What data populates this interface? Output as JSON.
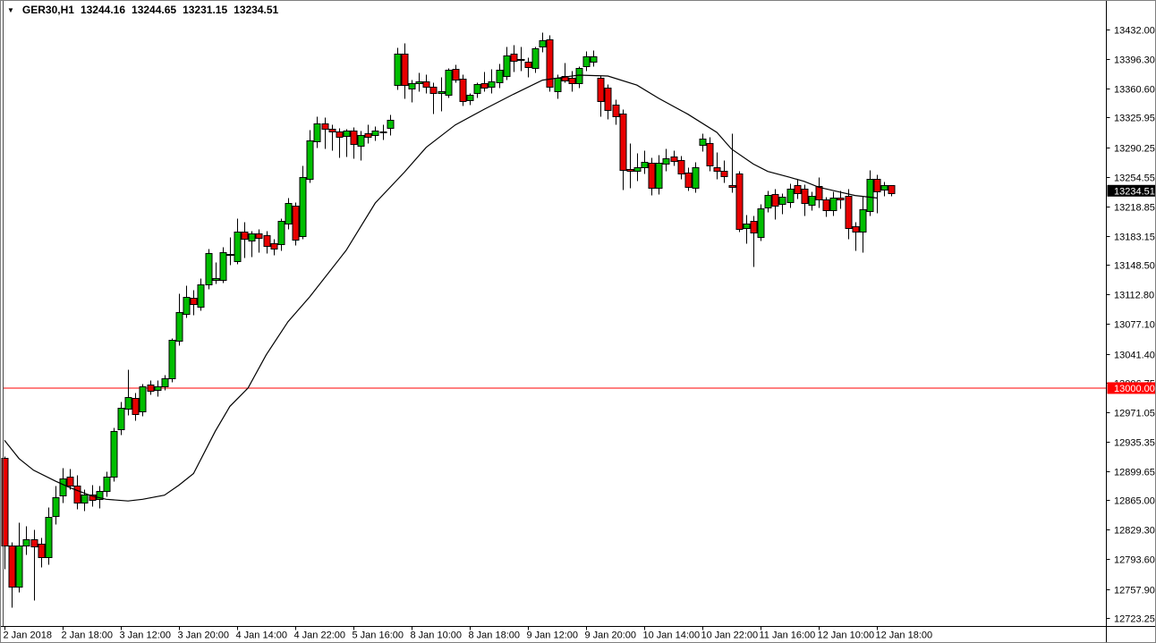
{
  "header": {
    "collapse_icon": "▼",
    "symbol_period": "GER30,H1",
    "open": "13244.16",
    "high": "13244.65",
    "low": "13231.15",
    "close": "13234.51"
  },
  "colors": {
    "background": "#FFFFFF",
    "bull_fill": "#00BE00",
    "bear_fill": "#E80000",
    "candle_outline": "#000000",
    "ma_line": "#000000",
    "hline": "#FF0000",
    "axis_line": "#000000",
    "label_text": "#000000",
    "last_price_box_bg": "#000000",
    "last_price_box_fg": "#FFFFFF",
    "hline_box_bg": "#FF0000",
    "hline_box_fg": "#FFFFFF"
  },
  "price_axis": {
    "labels": [
      "13432.00",
      "13396.30",
      "13360.60",
      "13325.95",
      "13290.25",
      "13254.55",
      "13218.85",
      "13183.15",
      "13148.50",
      "13112.80",
      "13077.10",
      "13041.40",
      "13006.75",
      "12971.05",
      "12935.35",
      "12899.65",
      "12865.00",
      "12829.30",
      "12793.60",
      "12757.90",
      "12723.25"
    ]
  },
  "time_axis": {
    "labels": [
      "2 Jan 2018",
      "2 Jan 18:00",
      "3 Jan 12:00",
      "3 Jan 20:00",
      "4 Jan 14:00",
      "4 Jan 22:00",
      "5 Jan 16:00",
      "8 Jan 10:00",
      "8 Jan 18:00",
      "9 Jan 12:00",
      "9 Jan 20:00",
      "10 Jan 14:00",
      "10 Jan 22:00",
      "11 Jan 16:00",
      "12 Jan 10:00",
      "12 Jan 18:00"
    ],
    "bars_per_tick": 8
  },
  "chart_data": {
    "type": "candlestick",
    "title": "GER30,H1",
    "symbol": "GER30",
    "timeframe": "H1",
    "grid": "off",
    "ylim": [
      12723.25,
      13432.0
    ],
    "y_tick_step": 35.7,
    "x_range_labels": [
      "2 Jan 2018",
      "12 Jan 18:00"
    ],
    "last_price": {
      "price": 13234.51,
      "label": "13234.51"
    },
    "hline": {
      "price": 13000.0,
      "label": "13000.00"
    },
    "ohlc": [
      [
        12916,
        12918,
        12782,
        12810
      ],
      [
        12810,
        12815,
        12736,
        12760
      ],
      [
        12760,
        12838,
        12754,
        12810
      ],
      [
        12810,
        12834,
        12800,
        12818
      ],
      [
        12818,
        12830,
        12745,
        12809
      ],
      [
        12812,
        12820,
        12784,
        12796
      ],
      [
        12797,
        12857,
        12788,
        12845
      ],
      [
        12845,
        12882,
        12836,
        12868
      ],
      [
        12870,
        12904,
        12862,
        12891
      ],
      [
        12893,
        12903,
        12878,
        12882
      ],
      [
        12882,
        12895,
        12855,
        12862
      ],
      [
        12862,
        12878,
        12852,
        12872
      ],
      [
        12872,
        12884,
        12858,
        12866
      ],
      [
        12866,
        12882,
        12856,
        12876
      ],
      [
        12876,
        12900,
        12870,
        12893
      ],
      [
        12893,
        12952,
        12888,
        12948
      ],
      [
        12950,
        12984,
        12944,
        12976
      ],
      [
        12975,
        13023,
        12968,
        12989
      ],
      [
        12988,
        12995,
        12961,
        12969
      ],
      [
        12972,
        13005,
        12966,
        13002
      ],
      [
        13004,
        13010,
        12992,
        12996
      ],
      [
        12998,
        13010,
        12990,
        13002
      ],
      [
        13002,
        13016,
        12998,
        13012
      ],
      [
        13012,
        13060,
        13008,
        13058
      ],
      [
        13058,
        13114,
        13052,
        13092
      ],
      [
        13090,
        13124,
        13085,
        13110
      ],
      [
        13109,
        13118,
        13088,
        13101
      ],
      [
        13098,
        13133,
        13094,
        13125
      ],
      [
        13125,
        13168,
        13120,
        13163
      ],
      [
        13131,
        13152,
        13126,
        13133
      ],
      [
        13131,
        13170,
        13127,
        13164
      ],
      [
        13162,
        13182,
        13149,
        13161
      ],
      [
        13153,
        13205,
        13150,
        13189
      ],
      [
        13188,
        13200,
        13157,
        13179
      ],
      [
        13177,
        13190,
        13158,
        13186
      ],
      [
        13186,
        13192,
        13164,
        13181
      ],
      [
        13184,
        13190,
        13163,
        13171
      ],
      [
        13174,
        13180,
        13160,
        13168
      ],
      [
        13173,
        13205,
        13166,
        13201
      ],
      [
        13198,
        13229,
        13192,
        13223
      ],
      [
        13220,
        13224,
        13172,
        13179
      ],
      [
        13183,
        13268,
        13180,
        13254
      ],
      [
        13252,
        13311,
        13248,
        13298
      ],
      [
        13297,
        13328,
        13290,
        13319
      ],
      [
        13319,
        13326,
        13289,
        13312
      ],
      [
        13312,
        13318,
        13287,
        13309
      ],
      [
        13309,
        13314,
        13278,
        13302
      ],
      [
        13303,
        13312,
        13279,
        13310
      ],
      [
        13310,
        13315,
        13277,
        13294
      ],
      [
        13292,
        13310,
        13275,
        13305
      ],
      [
        13307,
        13318,
        13295,
        13303
      ],
      [
        13305,
        13316,
        13298,
        13310
      ],
      [
        13309,
        13318,
        13300,
        13308
      ],
      [
        13313,
        13330,
        13305,
        13323
      ],
      [
        13365,
        13410,
        13360,
        13403
      ],
      [
        13403,
        13416,
        13349,
        13365
      ],
      [
        13361,
        13372,
        13345,
        13367
      ],
      [
        13367,
        13380,
        13358,
        13369
      ],
      [
        13370,
        13378,
        13356,
        13363
      ],
      [
        13363,
        13368,
        13331,
        13355
      ],
      [
        13356,
        13375,
        13334,
        13358
      ],
      [
        13354,
        13386,
        13350,
        13384
      ],
      [
        13385,
        13390,
        13368,
        13372
      ],
      [
        13373,
        13378,
        13340,
        13346
      ],
      [
        13347,
        13356,
        13342,
        13353
      ],
      [
        13355,
        13368,
        13350,
        13366
      ],
      [
        13367,
        13381,
        13358,
        13362
      ],
      [
        13362,
        13385,
        13356,
        13369
      ],
      [
        13369,
        13391,
        13362,
        13384
      ],
      [
        13376,
        13412,
        13372,
        13401
      ],
      [
        13403,
        13414,
        13381,
        13394
      ],
      [
        13395,
        13411,
        13382,
        13396
      ],
      [
        13393,
        13399,
        13375,
        13387
      ],
      [
        13385,
        13412,
        13380,
        13409
      ],
      [
        13411,
        13429,
        13405,
        13419
      ],
      [
        13420,
        13425,
        13358,
        13363
      ],
      [
        13358,
        13378,
        13349,
        13374
      ],
      [
        13376,
        13392,
        13368,
        13371
      ],
      [
        13374,
        13382,
        13358,
        13368
      ],
      [
        13368,
        13388,
        13362,
        13386
      ],
      [
        13388,
        13406,
        13382,
        13400
      ],
      [
        13394,
        13407,
        13388,
        13400
      ],
      [
        13374,
        13377,
        13328,
        13346
      ],
      [
        13362,
        13366,
        13324,
        13335
      ],
      [
        13341,
        13348,
        13318,
        13327
      ],
      [
        13331,
        13336,
        13239,
        13263
      ],
      [
        13264,
        13295,
        13241,
        13262
      ],
      [
        13262,
        13283,
        13250,
        13266
      ],
      [
        13265,
        13287,
        13258,
        13272
      ],
      [
        13271,
        13278,
        13233,
        13241
      ],
      [
        13241,
        13281,
        13234,
        13271
      ],
      [
        13271,
        13289,
        13262,
        13277
      ],
      [
        13279,
        13287,
        13268,
        13274
      ],
      [
        13275,
        13280,
        13252,
        13259
      ],
      [
        13260,
        13266,
        13238,
        13243
      ],
      [
        13241,
        13272,
        13236,
        13266
      ],
      [
        13293,
        13307,
        13286,
        13301
      ],
      [
        13295,
        13303,
        13262,
        13268
      ],
      [
        13266,
        13284,
        13252,
        13262
      ],
      [
        13262,
        13275,
        13248,
        13255
      ],
      [
        13244,
        13307,
        13236,
        13242
      ],
      [
        13258,
        13262,
        13188,
        13191
      ],
      [
        13193,
        13209,
        13175,
        13198
      ],
      [
        13201,
        13208,
        13147,
        13187
      ],
      [
        13182,
        13222,
        13178,
        13217
      ],
      [
        13218,
        13238,
        13212,
        13233
      ],
      [
        13234,
        13240,
        13204,
        13220
      ],
      [
        13221,
        13235,
        13210,
        13230
      ],
      [
        13224,
        13247,
        13218,
        13240
      ],
      [
        13245,
        13252,
        13228,
        13235
      ],
      [
        13240,
        13246,
        13208,
        13223
      ],
      [
        13221,
        13237,
        13214,
        13232
      ],
      [
        13243,
        13254,
        13218,
        13227
      ],
      [
        13227,
        13231,
        13207,
        13214
      ],
      [
        13214,
        13237,
        13208,
        13229
      ],
      [
        13229,
        13238,
        13217,
        13227
      ],
      [
        13232,
        13240,
        13180,
        13193
      ],
      [
        13195,
        13200,
        13166,
        13188
      ],
      [
        13188,
        13232,
        13164,
        13215
      ],
      [
        13213,
        13263,
        13208,
        13252
      ],
      [
        13252,
        13257,
        13211,
        13237
      ],
      [
        13240,
        13249,
        13232,
        13245
      ],
      [
        13244.16,
        13244.65,
        13231.15,
        13234.51
      ]
    ],
    "ma_points": [
      [
        0,
        12937
      ],
      [
        2,
        12915
      ],
      [
        4,
        12901
      ],
      [
        7,
        12888
      ],
      [
        9,
        12880
      ],
      [
        12,
        12870
      ],
      [
        14,
        12866
      ],
      [
        17,
        12864
      ],
      [
        19,
        12866
      ],
      [
        22,
        12871
      ],
      [
        24,
        12883
      ],
      [
        26,
        12897
      ],
      [
        29,
        12948
      ],
      [
        31,
        12978
      ],
      [
        33.5,
        13000
      ],
      [
        36,
        13040
      ],
      [
        39,
        13080
      ],
      [
        42,
        13110
      ],
      [
        47,
        13166
      ],
      [
        51,
        13223
      ],
      [
        55,
        13260
      ],
      [
        58,
        13290
      ],
      [
        62,
        13317
      ],
      [
        66,
        13336
      ],
      [
        70,
        13354
      ],
      [
        74,
        13371
      ],
      [
        79,
        13377
      ],
      [
        83,
        13376
      ],
      [
        87,
        13365
      ],
      [
        90,
        13349
      ],
      [
        94,
        13330
      ],
      [
        98,
        13308
      ],
      [
        100,
        13288
      ],
      [
        103,
        13270
      ],
      [
        105,
        13261
      ],
      [
        108,
        13254
      ],
      [
        110,
        13249
      ],
      [
        112,
        13242
      ],
      [
        115,
        13236
      ],
      [
        117,
        13232
      ],
      [
        120,
        13229
      ]
    ]
  }
}
